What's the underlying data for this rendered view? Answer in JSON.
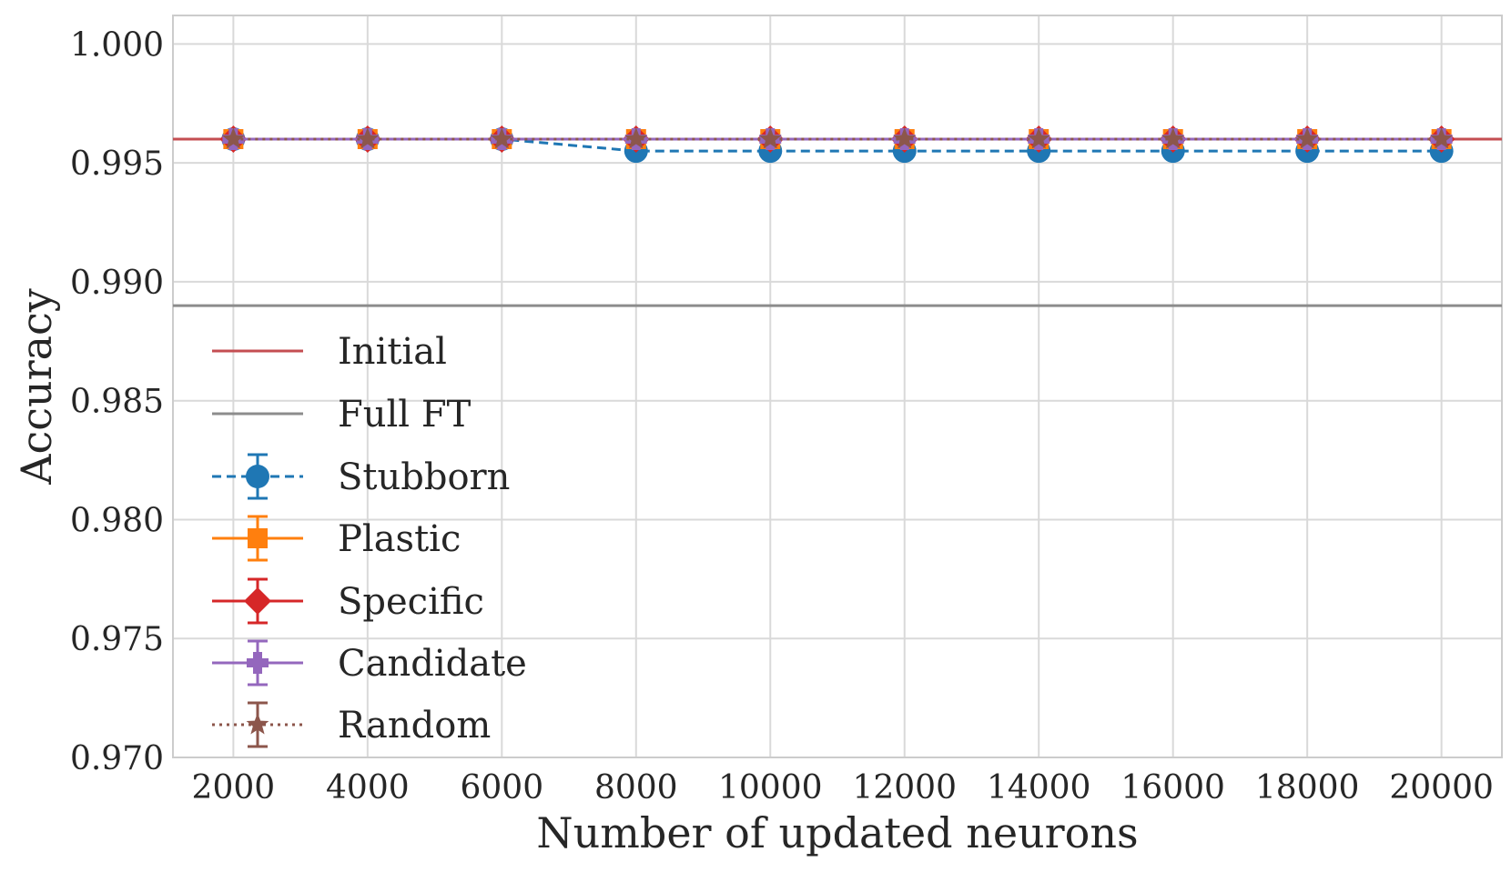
{
  "chart_data": {
    "type": "line",
    "xlabel": "Number of updated neurons",
    "ylabel": "Accuracy",
    "x": [
      2000,
      4000,
      6000,
      8000,
      10000,
      12000,
      14000,
      16000,
      18000,
      20000
    ],
    "xlim": [
      1100,
      20900
    ],
    "ylim": [
      0.97,
      1.0012
    ],
    "yticks": [
      0.97,
      0.975,
      0.98,
      0.985,
      0.99,
      0.995,
      1.0
    ],
    "ytick_labels": [
      "0.970",
      "0.975",
      "0.980",
      "0.985",
      "0.990",
      "0.995",
      "1.000"
    ],
    "xtick_labels": [
      "2000",
      "4000",
      "6000",
      "8000",
      "10000",
      "12000",
      "14000",
      "16000",
      "18000",
      "20000"
    ],
    "grid": true,
    "legend_position": "lower-left",
    "reference_lines": [
      {
        "name": "Initial",
        "y": 0.996,
        "color": "#c44e52"
      },
      {
        "name": "Full FT",
        "y": 0.989,
        "color": "#8c8c8c"
      }
    ],
    "series": [
      {
        "name": "Stubborn",
        "marker": "circle",
        "style": "dashed",
        "color": "#1f77b4",
        "values": [
          0.996,
          0.996,
          0.996,
          0.9955,
          0.9955,
          0.9955,
          0.9955,
          0.9955,
          0.9955,
          0.9955
        ]
      },
      {
        "name": "Plastic",
        "marker": "square",
        "style": "solid",
        "color": "#ff7f0e",
        "values": [
          0.996,
          0.996,
          0.996,
          0.996,
          0.996,
          0.996,
          0.996,
          0.996,
          0.996,
          0.996
        ]
      },
      {
        "name": "Specific",
        "marker": "diamond",
        "style": "solid",
        "color": "#d62728",
        "values": [
          0.996,
          0.996,
          0.996,
          0.996,
          0.996,
          0.996,
          0.996,
          0.996,
          0.996,
          0.996
        ]
      },
      {
        "name": "Candidate",
        "marker": "plus",
        "style": "solid",
        "color": "#9467bd",
        "values": [
          0.996,
          0.996,
          0.996,
          0.996,
          0.996,
          0.996,
          0.996,
          0.996,
          0.996,
          0.996
        ]
      },
      {
        "name": "Random",
        "marker": "star",
        "style": "dotted",
        "color": "#8c564b",
        "values": [
          0.996,
          0.996,
          0.996,
          0.996,
          0.996,
          0.996,
          0.996,
          0.996,
          0.996,
          0.996
        ]
      }
    ]
  }
}
